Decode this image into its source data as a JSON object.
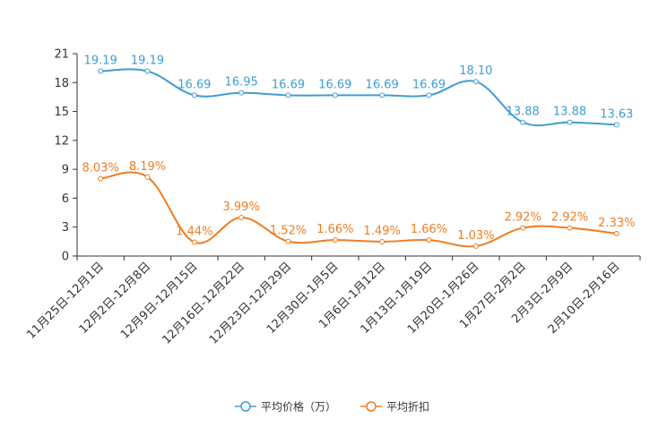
{
  "chart_data": {
    "type": "line",
    "categories": [
      "11月25日-12月1日",
      "12月2日-12月8日",
      "12月9日-12月15日",
      "12月16日-12月22日",
      "12月23日-12月29日",
      "12月30日-1月5日",
      "1月6日-1月12日",
      "1月13日-1月19日",
      "1月20日-1月26日",
      "1月27日-2月2日",
      "2月3日-2月9日",
      "2月10日-2月16日"
    ],
    "ylim": [
      0,
      21
    ],
    "yticks": [
      0,
      3,
      6,
      9,
      12,
      15,
      18,
      21
    ],
    "series": [
      {
        "name": "平均价格（万）",
        "color": "#3e9dd0",
        "values": [
          19.19,
          19.19,
          16.69,
          16.95,
          16.69,
          16.69,
          16.69,
          16.69,
          18.1,
          13.88,
          13.88,
          13.63
        ],
        "labels": [
          "19.19",
          "19.19",
          "16.69",
          "16.95",
          "16.69",
          "16.69",
          "16.69",
          "16.69",
          "18.10",
          "13.88",
          "13.88",
          "13.63"
        ]
      },
      {
        "name": "平均折扣",
        "color": "#f07c21",
        "values": [
          8.03,
          8.19,
          1.44,
          3.99,
          1.52,
          1.66,
          1.49,
          1.66,
          1.03,
          2.92,
          2.92,
          2.33
        ],
        "labels": [
          "8.03%",
          "8.19%",
          "1.44%",
          "3.99%",
          "1.52%",
          "1.66%",
          "1.49%",
          "1.66%",
          "1.03%",
          "2.92%",
          "2.92%",
          "2.33%"
        ]
      }
    ],
    "legend_position": "bottom-center",
    "grid": false
  }
}
